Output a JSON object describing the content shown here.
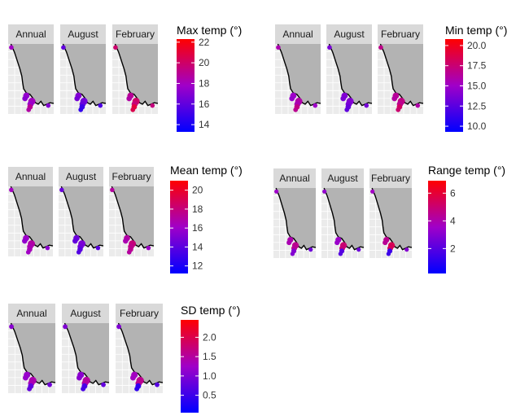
{
  "chart_data": [
    {
      "type": "facet-map",
      "facets": [
        "Annual",
        "August",
        "February"
      ],
      "legend": {
        "title": "Max temp (°)",
        "ticks": [
          14,
          16,
          18,
          20,
          22
        ],
        "range": [
          13.3,
          22.3
        ],
        "low_color": "#0000ff",
        "mid_color": "#a000c8",
        "high_color": "#ff0000"
      },
      "site_values": [
        [
          17.5,
          18,
          19,
          17
        ],
        [
          17,
          16.5,
          15,
          15.5
        ],
        [
          19,
          20,
          21,
          19.5
        ]
      ]
    },
    {
      "type": "facet-map",
      "facets": [
        "Annual",
        "August",
        "February"
      ],
      "legend": {
        "title": "Min temp (°)",
        "ticks": [
          10.0,
          12.5,
          15.0,
          17.5,
          20.0
        ],
        "range": [
          9.3,
          20.8
        ],
        "low_color": "#0000ff",
        "mid_color": "#a000c8",
        "high_color": "#ff0000"
      },
      "site_values": [
        [
          15,
          16,
          17,
          15
        ],
        [
          14,
          14,
          13,
          13.5
        ],
        [
          16.5,
          17,
          18,
          16
        ]
      ]
    },
    {
      "type": "facet-map",
      "facets": [
        "Annual",
        "August",
        "February"
      ],
      "legend": {
        "title": "Mean temp (°)",
        "ticks": [
          12,
          14,
          16,
          18,
          20
        ],
        "range": [
          11.2,
          21.0
        ],
        "low_color": "#0000ff",
        "mid_color": "#a000c8",
        "high_color": "#ff0000"
      },
      "site_values": [
        [
          16,
          17,
          16.5,
          15.5
        ],
        [
          14.5,
          15,
          14,
          14
        ],
        [
          17,
          18,
          17.5,
          16
        ]
      ]
    },
    {
      "type": "facet-map",
      "facets": [
        "Annual",
        "August",
        "February"
      ],
      "legend": {
        "title": "Range temp (°)",
        "ticks": [
          2,
          4,
          6
        ],
        "range": [
          0.2,
          6.9
        ],
        "low_color": "#0000ff",
        "mid_color": "#a000c8",
        "high_color": "#ff0000"
      },
      "site_values": [
        [
          4,
          4.5,
          3,
          2.5
        ],
        [
          3.5,
          5,
          2,
          2.5
        ],
        [
          4.5,
          5.5,
          1.5,
          3
        ]
      ]
    },
    {
      "type": "facet-map",
      "facets": [
        "Annual",
        "August",
        "February"
      ],
      "legend": {
        "title": "SD temp (°)",
        "ticks": [
          0.5,
          1.0,
          1.5,
          2.0
        ],
        "range": [
          0.05,
          2.45
        ],
        "low_color": "#0000ff",
        "mid_color": "#a000c8",
        "high_color": "#ff0000"
      },
      "site_values": [
        [
          1.2,
          1.4,
          0.8,
          0.9
        ],
        [
          1.1,
          1.5,
          0.6,
          0.8
        ],
        [
          1.3,
          1.6,
          0.4,
          0.7
        ]
      ]
    }
  ]
}
